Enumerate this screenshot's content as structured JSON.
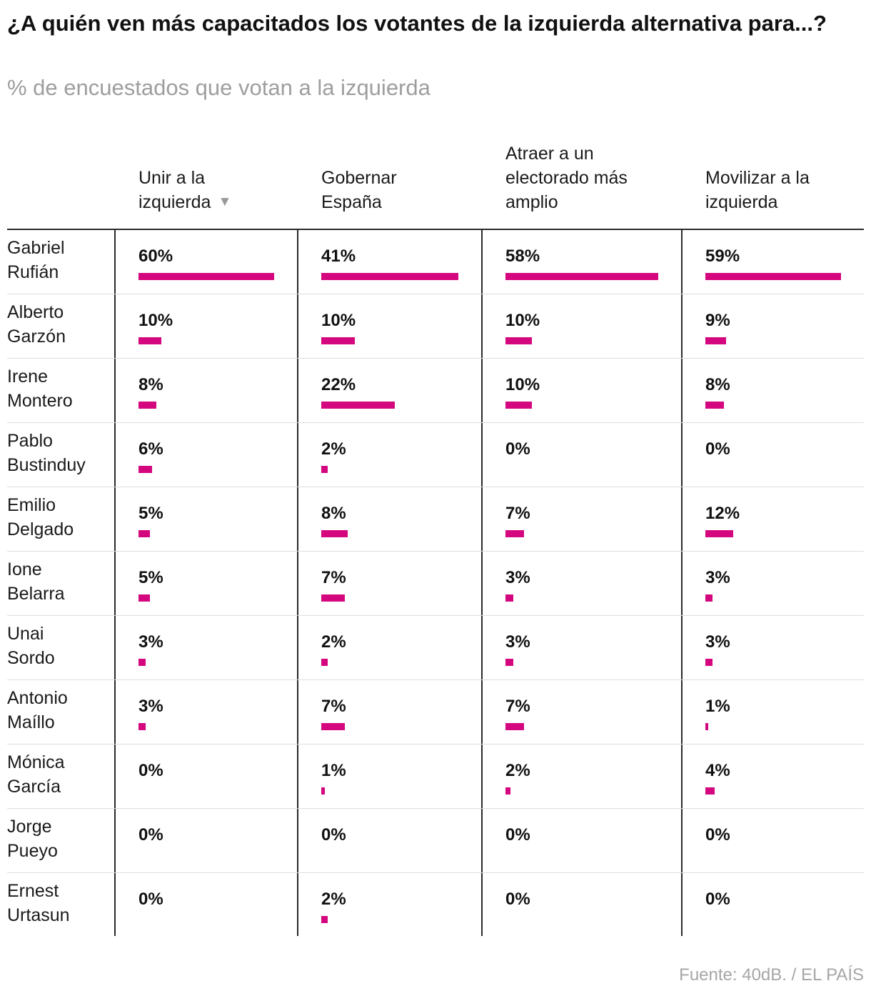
{
  "title": "¿A quién ven más capacitados los votantes de la izquierda alternativa para...?",
  "subtitle": "% de encuestados que votan a la izquierda",
  "source": "Fuente: 40dB. / EL PAÍS",
  "colors": {
    "bar": "#d4077f",
    "text": "#111111",
    "muted": "#9e9e9e"
  },
  "columns": [
    {
      "lines": [
        "Unir a la",
        "izquierda"
      ],
      "sorted": true,
      "sort_icon": "sort-down-icon"
    },
    {
      "lines": [
        "Gobernar",
        "España"
      ],
      "sorted": false
    },
    {
      "lines": [
        "Atraer a un",
        "electorado más",
        "amplio"
      ],
      "sorted": false
    },
    {
      "lines": [
        "Movilizar a la",
        "izquierda"
      ],
      "sorted": false
    }
  ],
  "chart_data": {
    "type": "table",
    "title": "¿A quién ven más capacitados los votantes de la izquierda alternativa para...?",
    "subtitle": "% de encuestados que votan a la izquierda",
    "unit": "%",
    "categories": [
      "Unir a la izquierda",
      "Gobernar España",
      "Atraer a un electorado más amplio",
      "Movilizar a la izquierda"
    ],
    "rows": [
      {
        "name": [
          "Gabriel",
          "Rufián"
        ],
        "values": [
          60,
          41,
          58,
          59
        ]
      },
      {
        "name": [
          "Alberto",
          "Garzón"
        ],
        "values": [
          10,
          10,
          10,
          9
        ]
      },
      {
        "name": [
          "Irene",
          "Montero"
        ],
        "values": [
          8,
          22,
          10,
          8
        ]
      },
      {
        "name": [
          "Pablo",
          "Bustinduy"
        ],
        "values": [
          6,
          2,
          0,
          0
        ]
      },
      {
        "name": [
          "Emilio",
          "Delgado"
        ],
        "values": [
          5,
          8,
          7,
          12
        ]
      },
      {
        "name": [
          "Ione",
          "Belarra"
        ],
        "values": [
          5,
          7,
          3,
          3
        ]
      },
      {
        "name": [
          "Unai",
          "Sordo"
        ],
        "values": [
          3,
          2,
          3,
          3
        ]
      },
      {
        "name": [
          "Antonio",
          "Maíllo"
        ],
        "values": [
          3,
          7,
          7,
          1
        ]
      },
      {
        "name": [
          "Mónica",
          "García"
        ],
        "values": [
          0,
          1,
          2,
          4
        ]
      },
      {
        "name": [
          "Jorge",
          "Pueyo"
        ],
        "values": [
          0,
          0,
          0,
          0
        ]
      },
      {
        "name": [
          "Ernest",
          "Urtasun"
        ],
        "values": [
          0,
          2,
          0,
          0
        ]
      }
    ]
  }
}
